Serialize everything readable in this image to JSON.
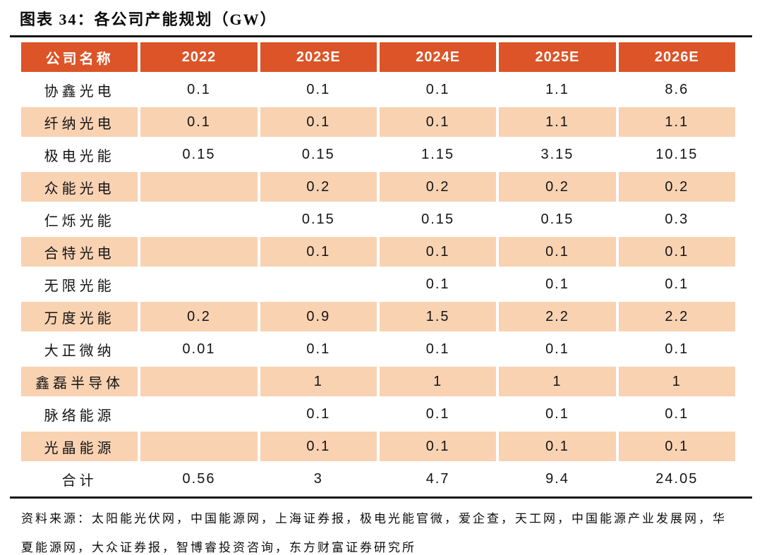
{
  "figure": {
    "title": "图表 34：各公司产能规划（GW）"
  },
  "table": {
    "columns": [
      "公司名称",
      "2022",
      "2023E",
      "2024E",
      "2025E",
      "2026E"
    ],
    "rows": [
      {
        "name": "协鑫光电",
        "values": [
          "0.1",
          "0.1",
          "0.1",
          "1.1",
          "8.6"
        ]
      },
      {
        "name": "纤纳光电",
        "values": [
          "0.1",
          "0.1",
          "0.1",
          "1.1",
          "1.1"
        ]
      },
      {
        "name": "极电光能",
        "values": [
          "0.15",
          "0.15",
          "1.15",
          "3.15",
          "10.15"
        ]
      },
      {
        "name": "众能光电",
        "values": [
          "",
          "0.2",
          "0.2",
          "0.2",
          "0.2"
        ]
      },
      {
        "name": "仁烁光能",
        "values": [
          "",
          "0.15",
          "0.15",
          "0.15",
          "0.3"
        ]
      },
      {
        "name": "合特光电",
        "values": [
          "",
          "0.1",
          "0.1",
          "0.1",
          "0.1"
        ]
      },
      {
        "name": "无限光能",
        "values": [
          "",
          "",
          "0.1",
          "0.1",
          "0.1"
        ]
      },
      {
        "name": "万度光能",
        "values": [
          "0.2",
          "0.9",
          "1.5",
          "2.2",
          "2.2"
        ]
      },
      {
        "name": "大正微纳",
        "values": [
          "0.01",
          "0.1",
          "0.1",
          "0.1",
          "0.1"
        ]
      },
      {
        "name": "鑫磊半导体",
        "values": [
          "",
          "1",
          "1",
          "1",
          "1"
        ]
      },
      {
        "name": "脉络能源",
        "values": [
          "",
          "0.1",
          "0.1",
          "0.1",
          "0.1"
        ]
      },
      {
        "name": "光晶能源",
        "values": [
          "",
          "0.1",
          "0.1",
          "0.1",
          "0.1"
        ]
      },
      {
        "name": "合计",
        "values": [
          "0.56",
          "3",
          "4.7",
          "9.4",
          "24.05"
        ]
      }
    ]
  },
  "source": {
    "text": "资料来源：太阳能光伏网，中国能源网，上海证券报，极电光能官微，爱企查，天工网，中国能源产业发展网，华夏能源网，大众证券报，智博睿投资咨询，东方财富证券研究所"
  },
  "colors": {
    "header_bg": "#DC5427",
    "header_text": "#FFFFFF",
    "alt_row_bg": "#F9D2B2",
    "body_text": "#141414",
    "rule": "#161616"
  }
}
